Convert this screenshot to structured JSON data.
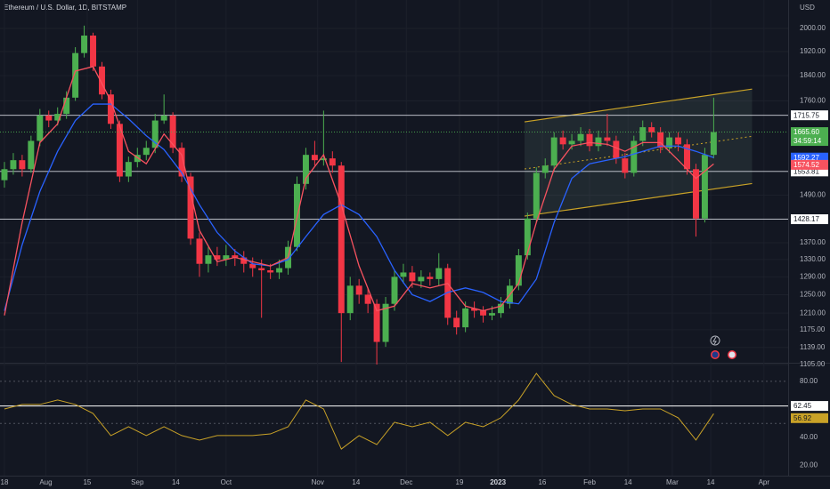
{
  "chart_data": [
    {
      "type": "candlestick",
      "title": "Ethereum / U.S. Dollar, 1D, BITSTAMP",
      "y_axis_label": "USD",
      "log_scale": true,
      "up_color": "#4caf50",
      "down_color": "#f23645",
      "x": [
        0,
        3,
        6,
        9,
        12,
        15,
        18,
        21,
        24,
        27,
        30,
        33,
        36,
        39,
        42,
        45,
        48,
        51,
        54,
        57,
        60,
        63,
        66,
        69,
        72,
        75,
        78,
        81,
        84,
        87,
        90,
        93,
        96,
        99,
        102,
        105,
        108,
        111,
        114,
        117,
        120,
        123,
        126,
        129,
        132,
        135,
        138,
        141,
        144,
        147,
        150,
        153,
        156,
        159,
        162,
        165,
        168,
        171,
        174,
        177,
        180,
        183,
        186,
        189,
        192,
        195,
        198,
        201,
        204,
        207,
        210,
        213,
        216,
        219,
        222,
        225,
        228,
        231,
        234,
        237,
        240
      ],
      "open": [
        1530,
        1560,
        1585,
        1560,
        1640,
        1715,
        1700,
        1720,
        1770,
        1915,
        1975,
        1870,
        1780,
        1690,
        1540,
        1580,
        1600,
        1620,
        1700,
        1715,
        1620,
        1540,
        1380,
        1320,
        1340,
        1330,
        1340,
        1335,
        1320,
        1310,
        1305,
        1300,
        1310,
        1360,
        1520,
        1600,
        1585,
        1590,
        1570,
        1210,
        1270,
        1250,
        1230,
        1150,
        1230,
        1290,
        1300,
        1280,
        1290,
        1285,
        1310,
        1200,
        1180,
        1220,
        1215,
        1205,
        1210,
        1230,
        1270,
        1340,
        1430,
        1550,
        1570,
        1650,
        1630,
        1640,
        1660,
        1625,
        1650,
        1640,
        1590,
        1550,
        1640,
        1680,
        1665,
        1620,
        1650,
        1630,
        1560,
        1430,
        1600
      ],
      "high": [
        1580,
        1605,
        1600,
        1655,
        1735,
        1730,
        1740,
        1790,
        1935,
        2010,
        1985,
        1885,
        1795,
        1700,
        1595,
        1620,
        1640,
        1720,
        1780,
        1725,
        1635,
        1550,
        1395,
        1360,
        1360,
        1365,
        1355,
        1350,
        1335,
        1330,
        1320,
        1330,
        1375,
        1540,
        1620,
        1640,
        1730,
        1610,
        1580,
        1290,
        1285,
        1265,
        1240,
        1245,
        1305,
        1320,
        1315,
        1305,
        1300,
        1345,
        1320,
        1215,
        1235,
        1235,
        1225,
        1225,
        1245,
        1285,
        1355,
        1445,
        1565,
        1590,
        1665,
        1670,
        1660,
        1680,
        1675,
        1670,
        1720,
        1655,
        1605,
        1655,
        1700,
        1695,
        1680,
        1665,
        1665,
        1645,
        1575,
        1620,
        1770
      ],
      "low": [
        1510,
        1545,
        1540,
        1550,
        1625,
        1680,
        1685,
        1705,
        1760,
        1900,
        1855,
        1765,
        1675,
        1525,
        1525,
        1565,
        1585,
        1605,
        1690,
        1605,
        1525,
        1365,
        1290,
        1300,
        1315,
        1315,
        1315,
        1300,
        1290,
        1200,
        1285,
        1285,
        1295,
        1350,
        1505,
        1570,
        1570,
        1550,
        1110,
        1195,
        1230,
        1210,
        1105,
        1140,
        1215,
        1275,
        1265,
        1265,
        1270,
        1270,
        1185,
        1165,
        1170,
        1200,
        1190,
        1195,
        1200,
        1220,
        1260,
        1330,
        1420,
        1535,
        1555,
        1615,
        1615,
        1625,
        1610,
        1610,
        1625,
        1575,
        1535,
        1540,
        1625,
        1650,
        1605,
        1605,
        1610,
        1545,
        1385,
        1420,
        1590
      ],
      "close": [
        1560,
        1585,
        1560,
        1640,
        1715,
        1700,
        1720,
        1770,
        1915,
        1975,
        1870,
        1780,
        1690,
        1540,
        1580,
        1600,
        1620,
        1700,
        1715,
        1620,
        1540,
        1380,
        1320,
        1340,
        1330,
        1340,
        1335,
        1320,
        1310,
        1305,
        1300,
        1310,
        1360,
        1520,
        1600,
        1585,
        1590,
        1570,
        1210,
        1270,
        1250,
        1230,
        1150,
        1230,
        1290,
        1300,
        1280,
        1290,
        1285,
        1310,
        1200,
        1180,
        1220,
        1215,
        1205,
        1210,
        1230,
        1270,
        1340,
        1430,
        1550,
        1570,
        1650,
        1630,
        1640,
        1660,
        1625,
        1650,
        1640,
        1590,
        1550,
        1640,
        1680,
        1665,
        1620,
        1650,
        1630,
        1560,
        1430,
        1600,
        1665.6
      ],
      "lines": [
        {
          "color": "#2962ff",
          "x": [
            0,
            6,
            12,
            18,
            24,
            30,
            36,
            42,
            48,
            54,
            60,
            66,
            72,
            78,
            84,
            90,
            96,
            102,
            108,
            114,
            120,
            126,
            132,
            138,
            144,
            150,
            156,
            162,
            168,
            174,
            180,
            186,
            192,
            198,
            204,
            210,
            216,
            222,
            228,
            234,
            240
          ],
          "values": [
            1215,
            1365,
            1500,
            1610,
            1700,
            1750,
            1750,
            1705,
            1655,
            1615,
            1550,
            1465,
            1395,
            1350,
            1320,
            1315,
            1330,
            1385,
            1440,
            1465,
            1440,
            1385,
            1305,
            1250,
            1235,
            1255,
            1265,
            1255,
            1235,
            1230,
            1285,
            1420,
            1535,
            1575,
            1585,
            1595,
            1610,
            1625,
            1625,
            1610,
            1592.27
          ]
        },
        {
          "color": "#f7525f",
          "x": [
            0,
            6,
            12,
            18,
            24,
            30,
            36,
            42,
            48,
            54,
            60,
            66,
            72,
            78,
            84,
            90,
            96,
            102,
            108,
            114,
            120,
            126,
            132,
            138,
            144,
            150,
            156,
            162,
            168,
            174,
            180,
            186,
            192,
            198,
            204,
            210,
            216,
            222,
            228,
            234,
            240
          ],
          "values": [
            1205,
            1420,
            1635,
            1690,
            1855,
            1870,
            1760,
            1610,
            1575,
            1660,
            1600,
            1400,
            1325,
            1335,
            1325,
            1315,
            1335,
            1535,
            1600,
            1465,
            1315,
            1215,
            1225,
            1275,
            1265,
            1275,
            1225,
            1215,
            1225,
            1275,
            1420,
            1560,
            1625,
            1635,
            1630,
            1610,
            1635,
            1635,
            1585,
            1535,
            1574.52
          ]
        }
      ],
      "channel": {
        "color": "#c9a227",
        "x": [
          176,
          253
        ],
        "upper": [
          1696,
          1797
        ],
        "lower": [
          1436,
          1521
        ]
      },
      "levels": [
        1715.75,
        1553.81,
        1428.17
      ],
      "last_price_label": "1665.60",
      "countdown": "34:59:14",
      "xlim": [
        -1.5,
        265.2
      ],
      "xticks": [
        {
          "value": 0,
          "label": "18"
        },
        {
          "value": 14,
          "label": "Aug"
        },
        {
          "value": 28,
          "label": "15"
        },
        {
          "value": 45,
          "label": "Sep"
        },
        {
          "value": 58,
          "label": "14"
        },
        {
          "value": 75,
          "label": "Oct"
        },
        {
          "value": 106,
          "label": "Nov"
        },
        {
          "value": 119,
          "label": "14"
        },
        {
          "value": 136,
          "label": "Dec"
        },
        {
          "value": 154,
          "label": "19"
        },
        {
          "value": 167,
          "label": "2023"
        },
        {
          "value": 182,
          "label": "16"
        },
        {
          "value": 198,
          "label": "Feb"
        },
        {
          "value": 211,
          "label": "14"
        },
        {
          "value": 226,
          "label": "Mar"
        },
        {
          "value": 239,
          "label": "14"
        },
        {
          "value": 257,
          "label": "Apr"
        }
      ],
      "ylim": [
        1105,
        2103
      ],
      "yticks": [
        {
          "value": 2000,
          "label": "2000.00"
        },
        {
          "value": 1920,
          "label": "1920.00"
        },
        {
          "value": 1840,
          "label": "1840.00"
        },
        {
          "value": 1760,
          "label": "1760.00"
        },
        {
          "value": 1490,
          "label": "1490.00"
        },
        {
          "value": 1370,
          "label": "1370.00"
        },
        {
          "value": 1330,
          "label": "1330.00"
        },
        {
          "value": 1290,
          "label": "1290.00"
        },
        {
          "value": 1250,
          "label": "1250.00"
        },
        {
          "value": 1210,
          "label": "1210.00"
        },
        {
          "value": 1175,
          "label": "1175.00"
        },
        {
          "value": 1139,
          "label": "1139.00"
        },
        {
          "value": 1105,
          "label": "1105.00"
        }
      ]
    },
    {
      "type": "line",
      "color": "#c9a227",
      "x": [
        0,
        6,
        12,
        18,
        24,
        30,
        36,
        42,
        48,
        54,
        60,
        66,
        72,
        78,
        84,
        90,
        96,
        102,
        108,
        114,
        120,
        126,
        132,
        138,
        144,
        150,
        156,
        162,
        168,
        174,
        180,
        186,
        192,
        198,
        204,
        210,
        216,
        222,
        228,
        234,
        240
      ],
      "values": [
        60.3,
        63.5,
        63.5,
        66.7,
        63.5,
        57.1,
        41.3,
        47.6,
        41.3,
        47.6,
        41.3,
        38.1,
        41.3,
        41.3,
        41.3,
        42.5,
        47.6,
        66.7,
        60.3,
        31.7,
        41.3,
        34.9,
        50.8,
        47.6,
        50.8,
        41.3,
        50.8,
        47.6,
        54.0,
        66.7,
        85.7,
        69.8,
        63.5,
        60.3,
        60.3,
        59.0,
        60.3,
        60.3,
        54.0,
        38.1,
        56.92
      ],
      "levels": [
        62.45
      ],
      "guides": [
        80,
        50
      ],
      "ylim": [
        12.7,
        92
      ],
      "yticks": [
        {
          "value": 80,
          "label": "80.00"
        },
        {
          "value": 40,
          "label": "40.00"
        },
        {
          "value": 20,
          "label": "20.00"
        }
      ]
    }
  ]
}
